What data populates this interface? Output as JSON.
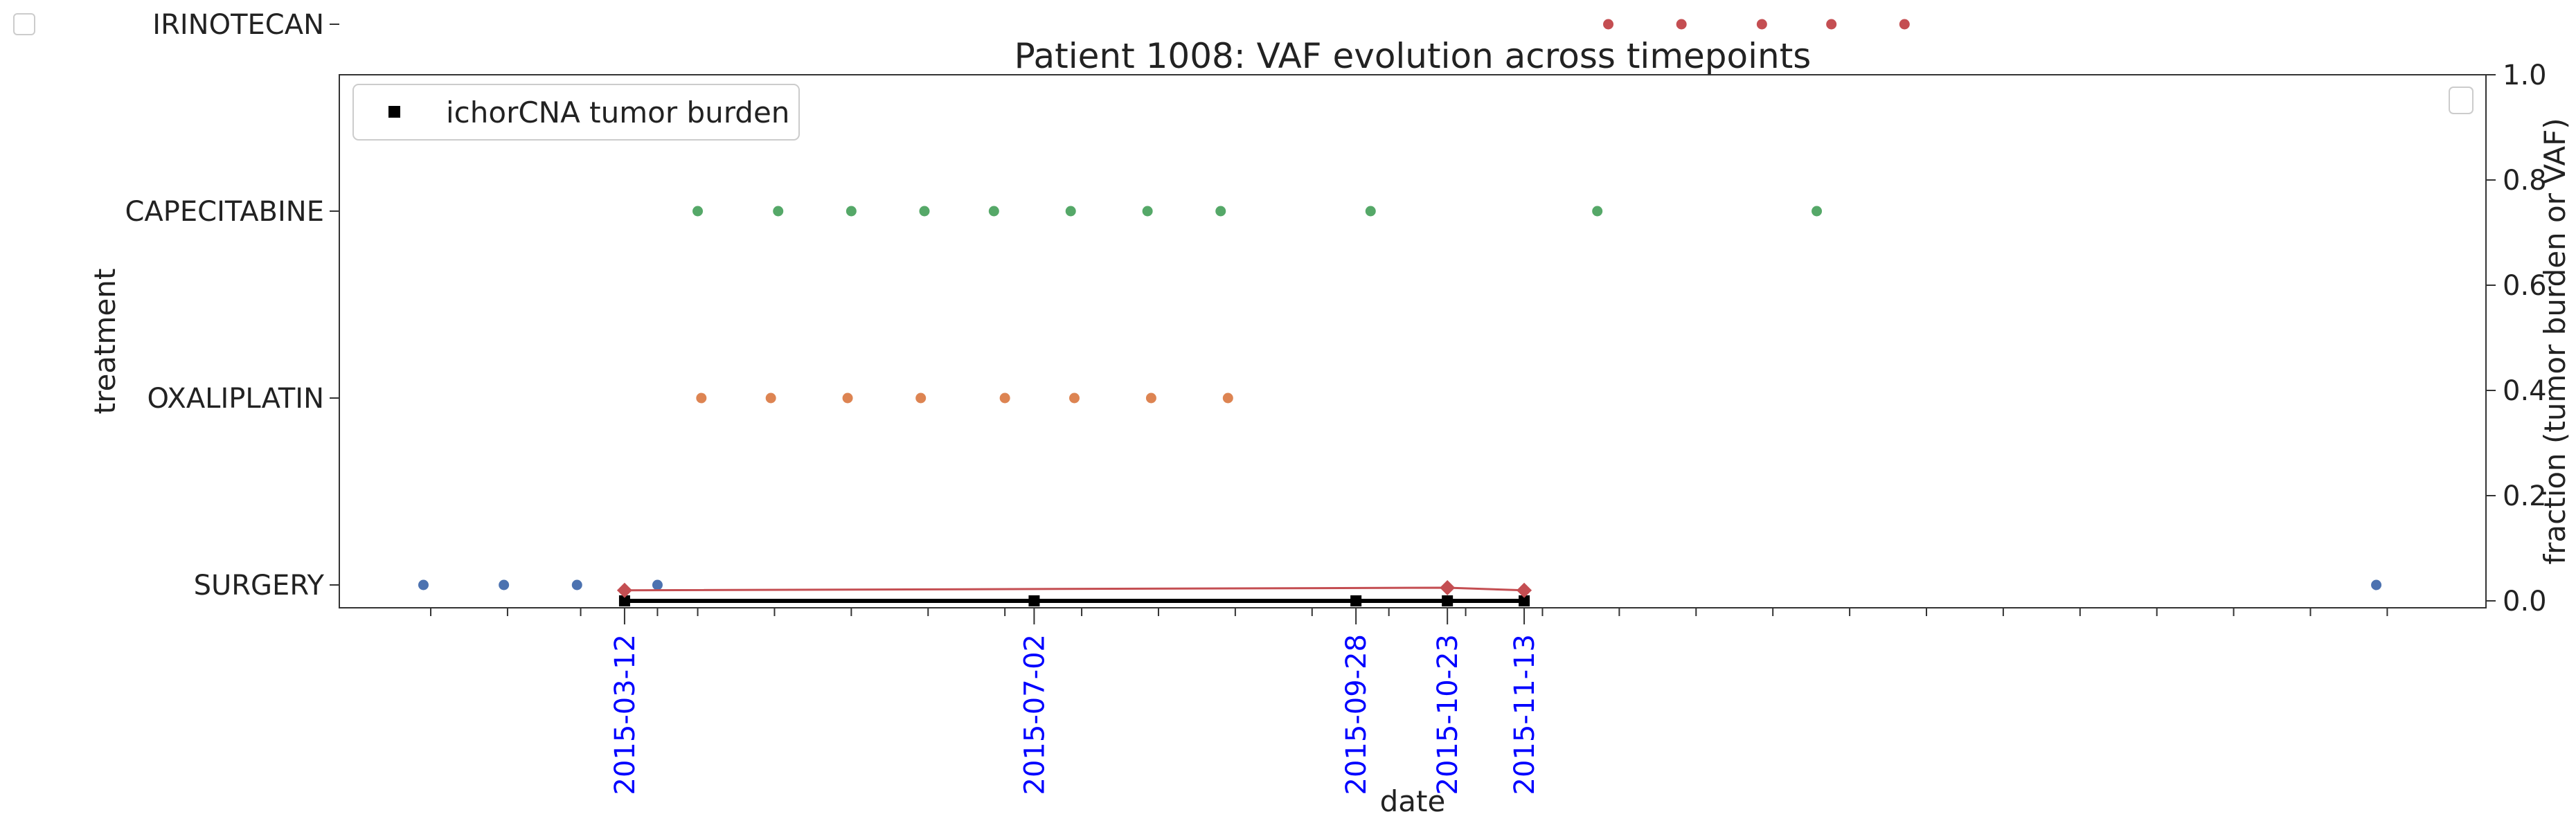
{
  "chart_data": {
    "type": "scatter",
    "title": "Patient 1008: VAF evolution across timepoints",
    "xlabel": "date",
    "ylabel_left": "treatment",
    "ylabel_right": "fraction (tumor burden or VAF)",
    "treatments": [
      "SURGERY",
      "OXALIPLATIN",
      "CAPECITABINE",
      "IRINOTECAN"
    ],
    "x_range": [
      "2014-12-24",
      "2016-08-02"
    ],
    "right_ylim": [
      0,
      1
    ],
    "right_yticks": [
      "0.0",
      "0.2",
      "0.4",
      "0.6",
      "0.8",
      "1.0"
    ],
    "sample_dates": [
      "2015-03-12",
      "2015-07-02",
      "2015-09-28",
      "2015-10-23",
      "2015-11-13"
    ],
    "minor_ticks": [
      "2015-01-18",
      "2015-02-08",
      "2015-02-28",
      "2015-03-21",
      "2015-04-01",
      "2015-04-22",
      "2015-05-13",
      "2015-06-03",
      "2015-06-24",
      "2015-07-15",
      "2015-08-05",
      "2015-08-26",
      "2015-09-16",
      "2015-10-07",
      "2015-10-28",
      "2015-11-18",
      "2015-12-09",
      "2015-12-30",
      "2016-01-20",
      "2016-02-10",
      "2016-03-02",
      "2016-03-23",
      "2016-04-13",
      "2016-05-04",
      "2016-05-25",
      "2016-06-15",
      "2016-07-06"
    ],
    "treatment_events": [
      {
        "treatment": "SURGERY",
        "color": "#4c72b0",
        "dates": [
          "2015-01-16",
          "2015-02-07",
          "2015-02-27",
          "2015-03-21",
          "2016-07-03"
        ]
      },
      {
        "treatment": "OXALIPLATIN",
        "color": "#dd8452",
        "dates": [
          "2015-04-02",
          "2015-04-21",
          "2015-05-12",
          "2015-06-01",
          "2015-06-24",
          "2015-07-13",
          "2015-08-03",
          "2015-08-24"
        ]
      },
      {
        "treatment": "CAPECITABINE",
        "color": "#55a868",
        "dates": [
          "2015-04-01",
          "2015-04-23",
          "2015-05-13",
          "2015-06-02",
          "2015-06-21",
          "2015-07-12",
          "2015-08-02",
          "2015-08-22",
          "2015-10-02",
          "2015-12-03",
          "2016-02-01"
        ]
      },
      {
        "treatment": "IRINOTECAN",
        "color": "#c44e52",
        "dates": [
          "2015-12-06",
          "2015-12-26",
          "2016-01-17",
          "2016-02-05",
          "2016-02-25"
        ]
      }
    ],
    "series": [
      {
        "name": "ichorCNA tumor burden",
        "color": "#000000",
        "marker": "square",
        "x": [
          "2015-03-12",
          "2015-07-02",
          "2015-09-28",
          "2015-10-23",
          "2015-11-13"
        ],
        "y": [
          0.0,
          0.0,
          0.0,
          0.0,
          0.0
        ]
      },
      {
        "color": "#c44e52",
        "marker": "diamond",
        "x": [
          "2015-03-12",
          "2015-10-23",
          "2015-11-13"
        ],
        "y": [
          0.02,
          0.025,
          0.02
        ]
      }
    ],
    "legend": {
      "placement": "upper-left",
      "entries": [
        "ichorCNA tumor burden"
      ]
    },
    "grid": false
  }
}
